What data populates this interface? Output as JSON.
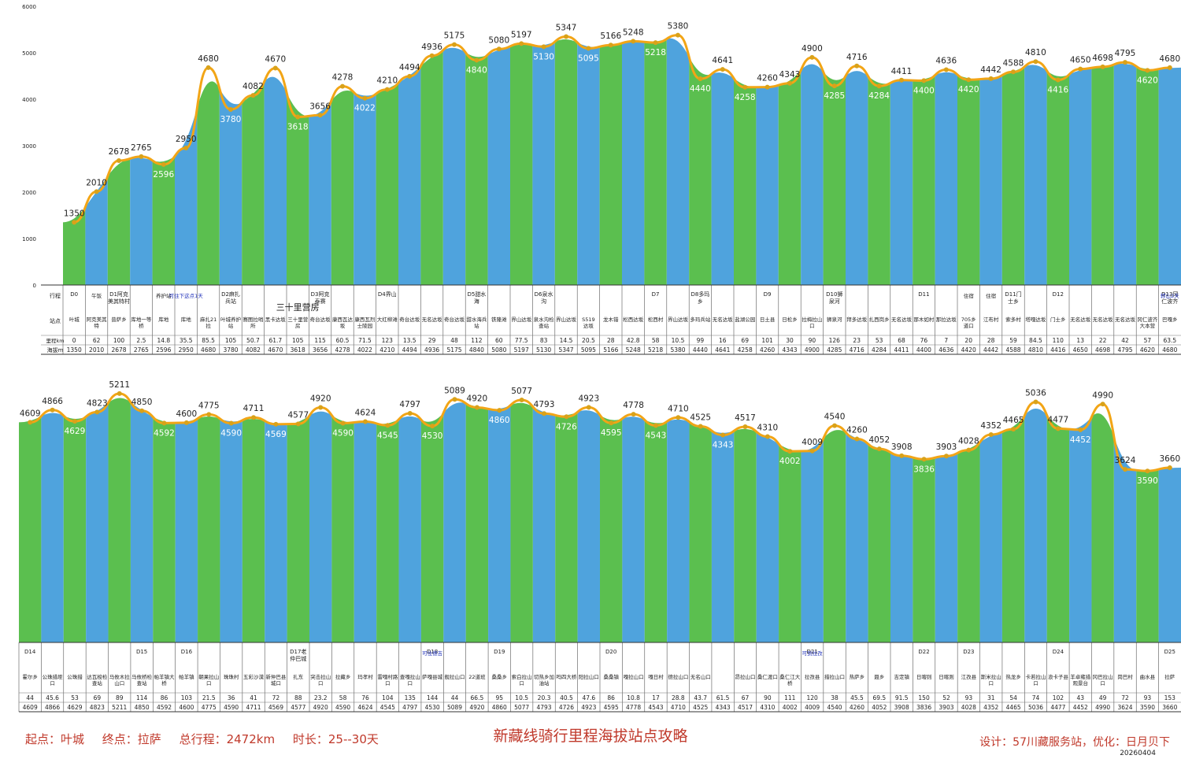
{
  "title": "新藏线骑行里程海拔站点攻略",
  "footer": {
    "start": "起点：叶城",
    "end": "终点：拉萨",
    "total": "总行程：2472km",
    "duration": "时长：25--30天",
    "credit": "设计：57川藏服务站，优化：日月贝下",
    "date": "20260404"
  },
  "colors": {
    "green": "#5bbf4f",
    "blue": "#4fa3dd",
    "line": "#f2a516",
    "dot": "#d9a21a",
    "labelBlue": "#2233bb"
  },
  "chart_data": [
    {
      "type": "area",
      "row_headers": [
        "行程",
        "站点",
        "里程km",
        "海拔m"
      ],
      "ylim": [
        0,
        6000
      ],
      "yticks": [
        0,
        1000,
        2000,
        3000,
        4000,
        5000,
        6000
      ],
      "columns": [
        {
          "day": "D0",
          "name": "叶城",
          "km": "0",
          "alt": 1350
        },
        {
          "day": "",
          "name": "阿克美其特",
          "km": "62",
          "alt": 2010,
          "note": "午饭"
        },
        {
          "day": "D1阿克美其特村",
          "name": "普萨乡",
          "km": "100",
          "alt": 2678
        },
        {
          "day": "",
          "name": "库地一等桥",
          "km": "2.5",
          "alt": 2765
        },
        {
          "day": "",
          "name": "库地",
          "km": "14.8",
          "alt": 2596,
          "note": "养护站"
        },
        {
          "day": "",
          "name": "库地",
          "km": "35.5",
          "alt": 2950,
          "note": "可住下这点1天"
        },
        {
          "day": "",
          "name": "麻扎21拉",
          "km": "85.5",
          "alt": 4680
        },
        {
          "day": "D2麻扎兵站",
          "name": "叶城养护站",
          "km": "105",
          "alt": 3780
        },
        {
          "day": "",
          "name": "赛图拉哨所",
          "km": "50.7",
          "alt": 4082
        },
        {
          "day": "",
          "name": "黑卡达坂",
          "km": "61.7",
          "alt": 4670
        },
        {
          "day": "",
          "name": "三十里营房",
          "km": "105",
          "alt": 3618,
          "note": "三十里营房"
        },
        {
          "day": "D3阿克泰赛",
          "name": "奇台达坂",
          "km": "115",
          "alt": 3656
        },
        {
          "day": "",
          "name": "康西瓦达坂",
          "km": "60.5",
          "alt": 4278
        },
        {
          "day": "",
          "name": "康西瓦烈士陵园",
          "km": "71.5",
          "alt": 4022
        },
        {
          "day": "D4界山",
          "name": "大红柳滩",
          "km": "123",
          "alt": 4210
        },
        {
          "day": "",
          "name": "奇台达坂",
          "km": "13.5",
          "alt": 4494
        },
        {
          "day": "",
          "name": "无名达坂",
          "km": "29",
          "alt": 4936
        },
        {
          "day": "",
          "name": "奇台达坂",
          "km": "48",
          "alt": 5175
        },
        {
          "day": "D5甜水海",
          "name": "甜水海兵站",
          "km": "112",
          "alt": 4840
        },
        {
          "day": "",
          "name": "铁隆滩",
          "km": "60",
          "alt": 5080
        },
        {
          "day": "",
          "name": "界山达坂",
          "km": "77.5",
          "alt": 5197
        },
        {
          "day": "D6泉水沟",
          "name": "泉水沟检查站",
          "km": "83",
          "alt": 5130
        },
        {
          "day": "",
          "name": "界山达坂",
          "km": "14.5",
          "alt": 5347
        },
        {
          "day": "",
          "name": "S519达坂",
          "km": "20.5",
          "alt": 5095
        },
        {
          "day": "",
          "name": "龙木错",
          "km": "28",
          "alt": 5166
        },
        {
          "day": "",
          "name": "松西达坂",
          "km": "42.8",
          "alt": 5248
        },
        {
          "day": "D7",
          "name": "松西村",
          "km": "58",
          "alt": 5218
        },
        {
          "day": "",
          "name": "界山达坂",
          "km": "10.5",
          "alt": 5380
        },
        {
          "day": "D8多玛乡",
          "name": "多玛兵站",
          "km": "99",
          "alt": 4440
        },
        {
          "day": "",
          "name": "无名达坂",
          "km": "16",
          "alt": 4641
        },
        {
          "day": "",
          "name": "盐湖公园",
          "km": "69",
          "alt": 4258
        },
        {
          "day": "D9",
          "name": "日土县",
          "km": "101",
          "alt": 4260
        },
        {
          "day": "",
          "name": "日松乡",
          "km": "30",
          "alt": 4343
        },
        {
          "day": "",
          "name": "拉梅拉山口",
          "km": "90",
          "alt": 4900
        },
        {
          "day": "D10狮泉河",
          "name": "狮泉河",
          "km": "126",
          "alt": 4285
        },
        {
          "day": "",
          "name": "拜多达坂",
          "km": "23",
          "alt": 4716
        },
        {
          "day": "",
          "name": "扎西岗乡",
          "km": "53",
          "alt": 4284
        },
        {
          "day": "",
          "name": "无名达坂",
          "km": "68",
          "alt": 4411
        },
        {
          "day": "D11",
          "name": "那木如村",
          "km": "76",
          "alt": 4400
        },
        {
          "day": "",
          "name": "那拉达坂",
          "km": "7",
          "alt": 4636
        },
        {
          "day": "",
          "name": "705乡道口",
          "km": "20",
          "alt": 4420,
          "note": "住宿"
        },
        {
          "day": "",
          "name": "江布村",
          "km": "28",
          "alt": 4442,
          "note": "住宿"
        },
        {
          "day": "D11门士乡",
          "name": "索多村",
          "km": "59",
          "alt": 4588
        },
        {
          "day": "",
          "name": "塔嘎达坂",
          "km": "84.5",
          "alt": 4810
        },
        {
          "day": "D12",
          "name": "门士乡",
          "km": "110",
          "alt": 4416
        },
        {
          "day": "",
          "name": "无名达坂",
          "km": "13",
          "alt": 4650
        },
        {
          "day": "",
          "name": "无名达坂",
          "km": "22",
          "alt": 4698
        },
        {
          "day": "",
          "name": "无名达坂",
          "km": "42",
          "alt": 4795
        },
        {
          "day": "",
          "name": "冈仁波齐大本营",
          "km": "57",
          "alt": 4620
        },
        {
          "day": "D13冈仁波齐",
          "name": "巴嘎乡",
          "km": "63.5",
          "alt": 4680,
          "note": "转山2天"
        }
      ]
    },
    {
      "type": "area",
      "ylim": [
        0,
        6000
      ],
      "columns": [
        {
          "day": "D14",
          "name": "霍尔乡",
          "km": "44",
          "alt": 4609
        },
        {
          "day": "",
          "name": "公珠措垭口",
          "km": "45.6",
          "alt": 4866
        },
        {
          "day": "",
          "name": "公珠措",
          "km": "53",
          "alt": 4629
        },
        {
          "day": "",
          "name": "达瓦梭检查站",
          "km": "69",
          "alt": 4823
        },
        {
          "day": "",
          "name": "马攸木拉山口",
          "km": "89",
          "alt": 5211
        },
        {
          "day": "D15",
          "name": "马攸桥检查站",
          "km": "114",
          "alt": 4850
        },
        {
          "day": "",
          "name": "帕羊镇大桥",
          "km": "86",
          "alt": 4592
        },
        {
          "day": "D16",
          "name": "帕羊镇",
          "km": "103",
          "alt": 4600
        },
        {
          "day": "",
          "name": "朝果拉山口",
          "km": "21.5",
          "alt": 4775
        },
        {
          "day": "",
          "name": "珠珠村",
          "km": "36",
          "alt": 4590
        },
        {
          "day": "",
          "name": "五彩沙漠",
          "km": "41",
          "alt": 4711
        },
        {
          "day": "",
          "name": "新仲巴县城口",
          "km": "72",
          "alt": 4569
        },
        {
          "day": "D17老仲巴城",
          "name": "扎东",
          "km": "88",
          "alt": 4577
        },
        {
          "day": "",
          "name": "突击拉山口",
          "km": "23.2",
          "alt": 4920
        },
        {
          "day": "",
          "name": "拉藏乡",
          "km": "58",
          "alt": 4590
        },
        {
          "day": "",
          "name": "玛孝村",
          "km": "76",
          "alt": 4624
        },
        {
          "day": "",
          "name": "雷嘎村路口",
          "km": "104",
          "alt": 4545
        },
        {
          "day": "",
          "name": "查嘎拉山口",
          "km": "135",
          "alt": 4797
        },
        {
          "day": "D18",
          "name": "萨嘎县城",
          "km": "144",
          "alt": 4530,
          "note": "可住德吉"
        },
        {
          "day": "",
          "name": "舰拉山口",
          "km": "44",
          "alt": 5089
        },
        {
          "day": "",
          "name": "22道班",
          "km": "66.5",
          "alt": 4920
        },
        {
          "day": "D19",
          "name": "桑桑乡",
          "km": "95",
          "alt": 4860
        },
        {
          "day": "",
          "name": "索白拉山口",
          "km": "10.5",
          "alt": 5077
        },
        {
          "day": "",
          "name": "切热乡加油站",
          "km": "20.3",
          "alt": 4793
        },
        {
          "day": "",
          "name": "吗四大桥",
          "km": "40.5",
          "alt": 4726
        },
        {
          "day": "",
          "name": "阳拉山口",
          "km": "47.6",
          "alt": 4923
        },
        {
          "day": "D20",
          "name": "桑桑镇",
          "km": "86",
          "alt": 4595
        },
        {
          "day": "",
          "name": "嘎拉山口",
          "km": "10.8",
          "alt": 4778
        },
        {
          "day": "",
          "name": "嘎日村",
          "km": "17",
          "alt": 4543
        },
        {
          "day": "",
          "name": "德拉山口",
          "km": "28.8",
          "alt": 4710
        },
        {
          "day": "",
          "name": "无名山口",
          "km": "43.7",
          "alt": 4525
        },
        {
          "day": "",
          "name": "",
          "km": "61.5",
          "alt": 4343
        },
        {
          "day": "",
          "name": "昂拉山口",
          "km": "67",
          "alt": 4517
        },
        {
          "day": "",
          "name": "桑仁渡口",
          "km": "90",
          "alt": 4310
        },
        {
          "day": "",
          "name": "桑仁江大桥",
          "km": "111",
          "alt": 4002
        },
        {
          "day": "D21",
          "name": "拉孜县",
          "km": "120",
          "alt": 4009,
          "note": "可到拉孜"
        },
        {
          "day": "",
          "name": "措拉山口",
          "km": "38",
          "alt": 4540
        },
        {
          "day": "",
          "name": "热萨乡",
          "km": "45.5",
          "alt": 4260
        },
        {
          "day": "",
          "name": "聂乡",
          "km": "69.5",
          "alt": 4052
        },
        {
          "day": "",
          "name": "吉定镇",
          "km": "91.5",
          "alt": 3908
        },
        {
          "day": "D22",
          "name": "日喀则",
          "km": "150",
          "alt": 3836
        },
        {
          "day": "",
          "name": "日喀则",
          "km": "52",
          "alt": 3903
        },
        {
          "day": "D23",
          "name": "江孜县",
          "km": "93",
          "alt": 4028
        },
        {
          "day": "",
          "name": "斯米拉山口",
          "km": "31",
          "alt": 4352
        },
        {
          "day": "",
          "name": "热龙乡",
          "km": "54",
          "alt": 4465
        },
        {
          "day": "",
          "name": "卡若拉山口",
          "km": "74",
          "alt": 5036
        },
        {
          "day": "D24",
          "name": "浪卡子县",
          "km": "102",
          "alt": 4477
        },
        {
          "day": "",
          "name": "羊卓雍措观景台",
          "km": "43",
          "alt": 4452
        },
        {
          "day": "",
          "name": "冈巴拉山口",
          "km": "49",
          "alt": 4990
        },
        {
          "day": "",
          "name": "岗巴村",
          "km": "72",
          "alt": 3624
        },
        {
          "day": "",
          "name": "曲水县",
          "km": "93",
          "alt": 3590
        },
        {
          "day": "D25",
          "name": "拉萨",
          "km": "153",
          "alt": 3660
        }
      ]
    }
  ]
}
